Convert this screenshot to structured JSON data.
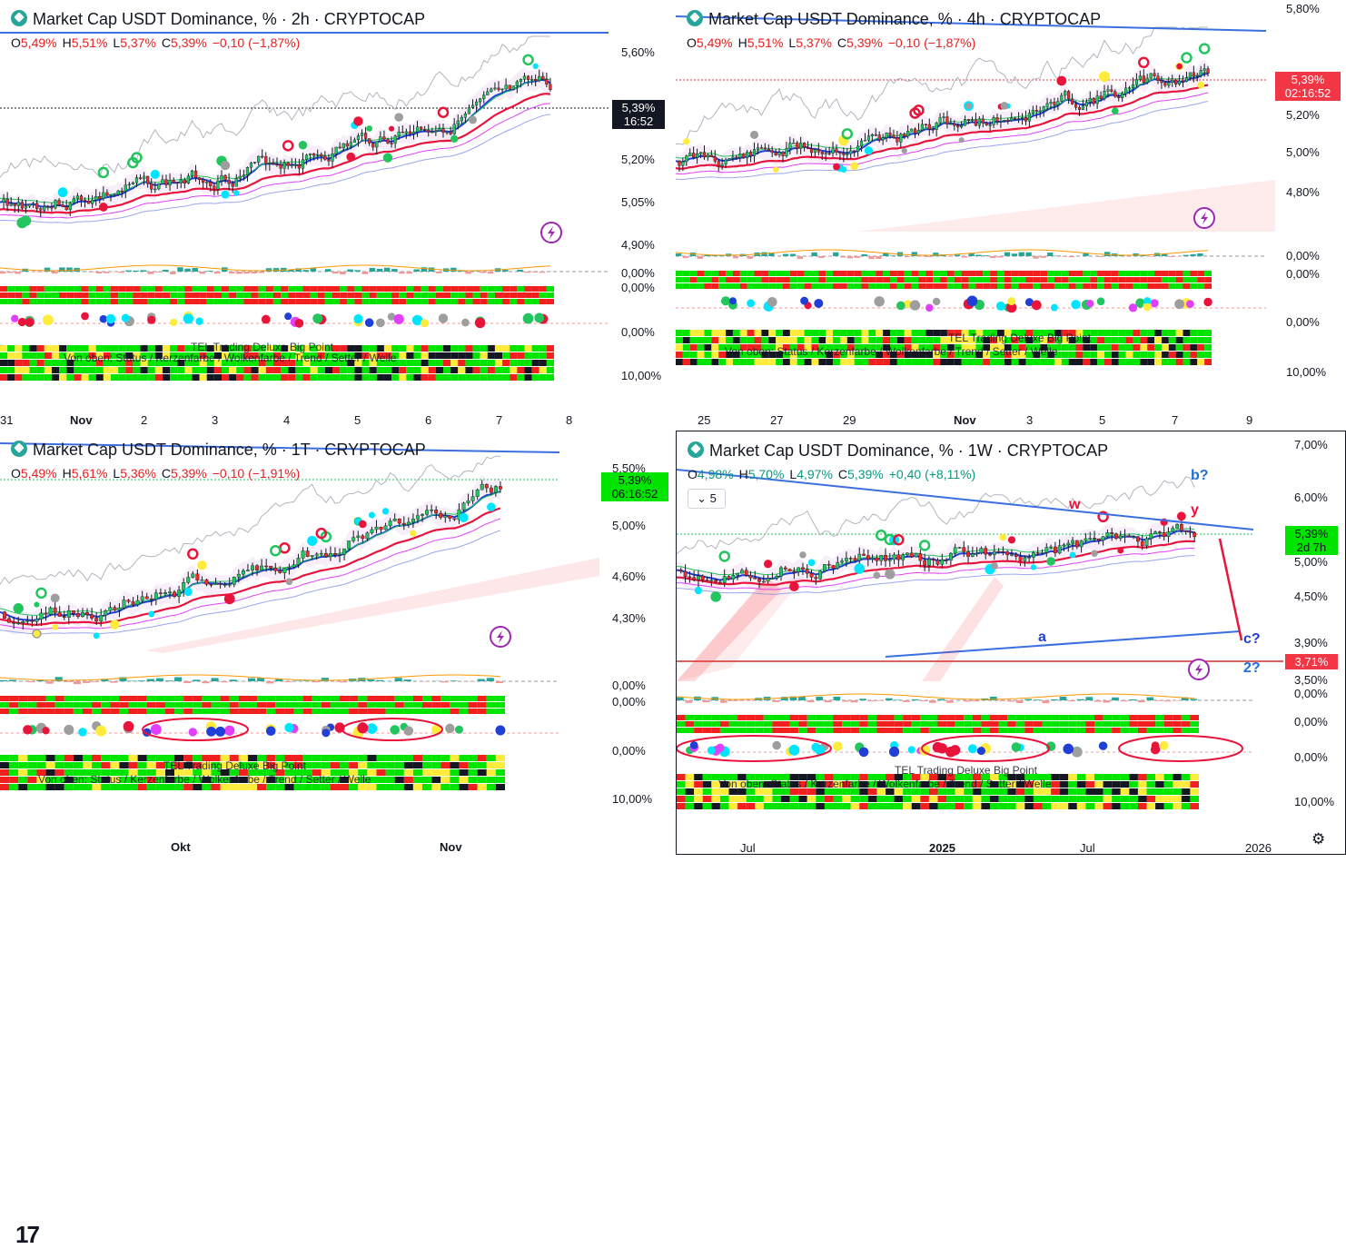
{
  "panels": [
    {
      "id": "p2h",
      "title": "Market Cap USDT Dominance, % · 2h · CRYPTOCAP",
      "ohlc": {
        "o": "5,49%",
        "h": "5,51%",
        "l": "5,37%",
        "c": "5,39%",
        "chg": "−0,10 (−1,87%)"
      },
      "price_tag": {
        "value": "5,39%",
        "countdown": "16:52"
      },
      "y_ticks": [
        "5,60%",
        "5,20%",
        "5,05%",
        "4,90%"
      ],
      "sub_ticks": [
        "0,00%",
        "0,00%",
        "0,00%",
        "10,00%"
      ],
      "x_ticks": [
        "31",
        "Nov",
        "2",
        "3",
        "4",
        "5",
        "6",
        "7",
        "8"
      ],
      "indicator_note": "Von oben: Status / Kerzenfarbe / Wolkenfarbe / Trend / Setter / Welle",
      "indicator_name": "TEL Trading Deluxe Big Point"
    },
    {
      "id": "p4h",
      "title": "Market Cap USDT Dominance, % · 4h · CRYPTOCAP",
      "ohlc": {
        "o": "5,49%",
        "h": "5,51%",
        "l": "5,37%",
        "c": "5,39%",
        "chg": "−0,10 (−1,87%)"
      },
      "price_tag": {
        "value": "5,39%",
        "countdown": "02:16:52"
      },
      "y_ticks": [
        "5,80%",
        "5,20%",
        "5,00%",
        "4,80%"
      ],
      "sub_ticks": [
        "0,00%",
        "0,00%",
        "0,00%",
        "10,00%"
      ],
      "x_ticks": [
        "25",
        "27",
        "29",
        "Nov",
        "3",
        "5",
        "7",
        "9"
      ],
      "indicator_note": "Von oben: Status / Kerzenfarbe / Wolkenfarbe / Trend / Setter / Welle",
      "indicator_name": "TEL Trading Deluxe Big Point"
    },
    {
      "id": "p1d",
      "title": "Market Cap USDT Dominance, % · 1T · CRYPTOCAP",
      "ohlc": {
        "o": "5,49%",
        "h": "5,61%",
        "l": "5,36%",
        "c": "5,39%",
        "chg": "−0,10 (−1,91%)"
      },
      "price_tag": {
        "value": "5,39%",
        "countdown": "06:16:52"
      },
      "y_ticks": [
        "5,50%",
        "5,00%",
        "4,60%",
        "4,30%"
      ],
      "sub_ticks": [
        "0,00%",
        "0,00%",
        "0,00%",
        "10,00%"
      ],
      "x_ticks": [
        "Okt",
        "Nov"
      ],
      "indicator_note": "Von oben: Status / Kerzenfarbe / Wolkenfarbe / Trend / Setter / Welle",
      "indicator_name": "TEL Trading Deluxe Big Point"
    },
    {
      "id": "p1w",
      "title": "Market Cap USDT Dominance, % · 1W · CRYPTOCAP",
      "ohlc": {
        "o": "4,98%",
        "h": "5,70%",
        "l": "4,97%",
        "c": "5,39%",
        "chg": "+0,40 (+8,11%)"
      },
      "price_tag": {
        "value": "5,39%",
        "countdown": "2d 7h"
      },
      "level_tag": "3,71%",
      "y_ticks": [
        "7,00%",
        "6,00%",
        "5,00%",
        "4,50%",
        "3,90%",
        "3,50%"
      ],
      "sub_ticks": [
        "0,00%",
        "0,00%",
        "0,00%",
        "10,00%"
      ],
      "x_ticks": [
        "Jul",
        "2025",
        "Jul",
        "2026"
      ],
      "period_badge": "5",
      "waves": {
        "w": "w",
        "y": "y",
        "a": "a",
        "b": "b?",
        "c": "c?",
        "two": "2?"
      },
      "indicator_note": "Von oben: Status / Kerzenfarbe / Wolkenfarbe / Trend / Setter / Welle",
      "indicator_name": "TEL Trading Deluxe Big Point"
    }
  ],
  "colors": {
    "up": "#22c55e",
    "down": "#ef2a2a",
    "blue": "#1f3fd6",
    "red": "#e8143c",
    "trend": "#3b6fe0",
    "tag_red": "#f23645",
    "tag_green": "#00e400"
  },
  "icons": [
    "lightning-icon",
    "gear-icon",
    "tradingview-logo-icon"
  ]
}
